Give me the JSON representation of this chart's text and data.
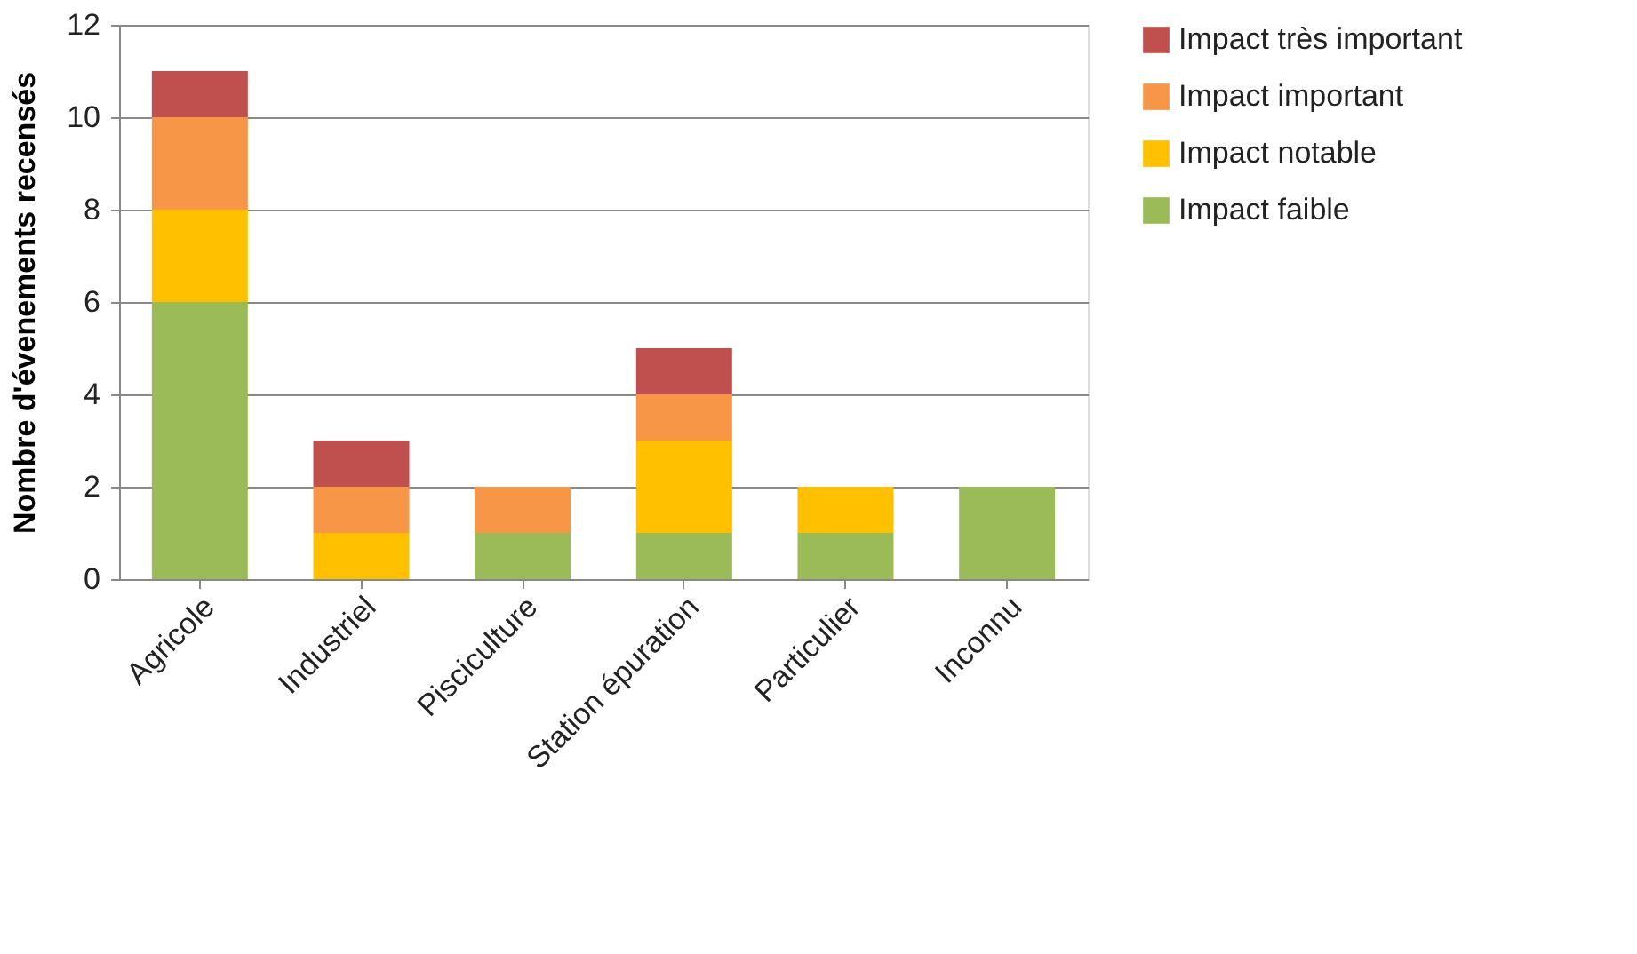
{
  "chart_data": {
    "type": "bar",
    "stacked": true,
    "ylabel": "Nombre d'évenements recensés",
    "categories": [
      "Agricole",
      "Industriel",
      "Pisciculture",
      "Station épuration",
      "Particulier",
      "Inconnu"
    ],
    "series": [
      {
        "name": "Impact faible",
        "color": "#9bbb59",
        "values": [
          6,
          0,
          1,
          1,
          1,
          2
        ]
      },
      {
        "name": "Impact notable",
        "color": "#ffc000",
        "values": [
          2,
          1,
          0,
          2,
          1,
          0
        ]
      },
      {
        "name": "Impact important",
        "color": "#f79646",
        "values": [
          2,
          1,
          1,
          1,
          0,
          0
        ]
      },
      {
        "name": "Impact très important",
        "color": "#c0504d",
        "values": [
          1,
          1,
          0,
          1,
          0,
          0
        ]
      }
    ],
    "ylim": [
      0,
      12
    ],
    "yticks": [
      0,
      2,
      4,
      6,
      8,
      10,
      12
    ],
    "grid": "y",
    "legend": "right"
  }
}
